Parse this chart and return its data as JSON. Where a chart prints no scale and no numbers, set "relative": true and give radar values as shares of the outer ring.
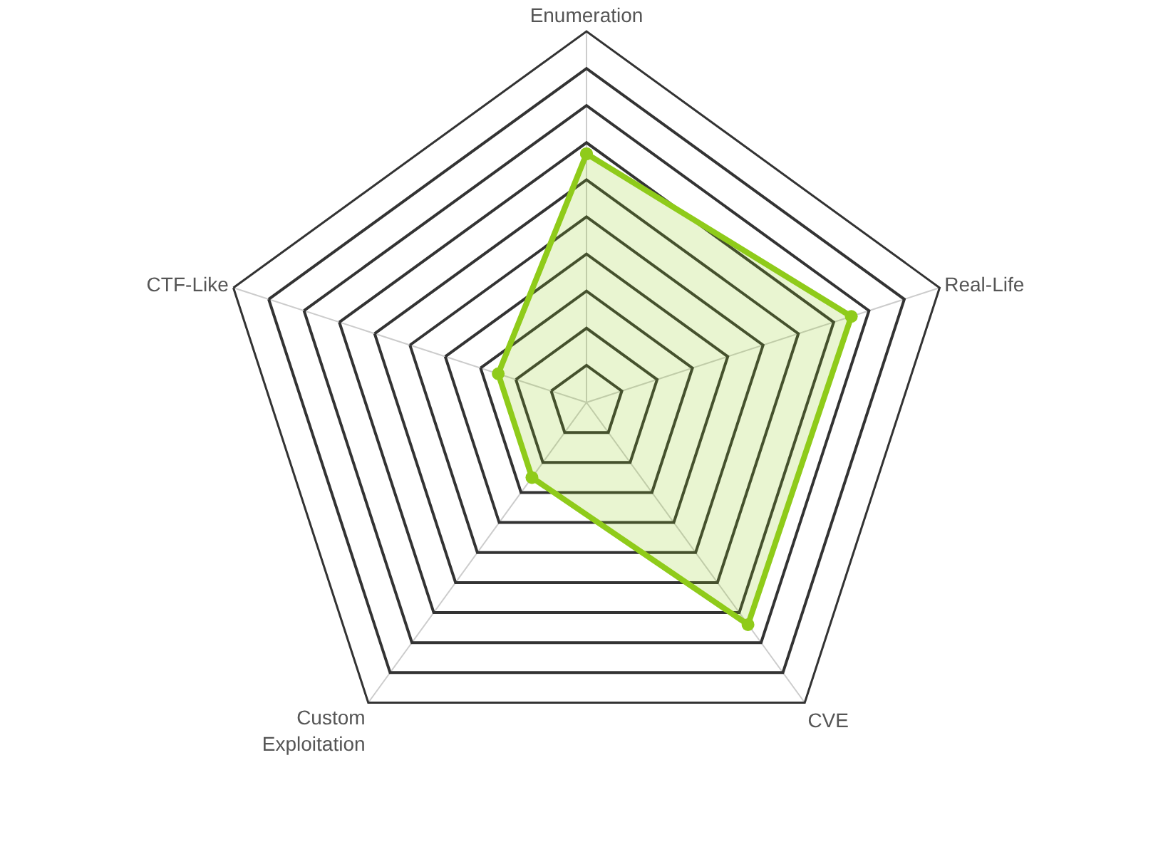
{
  "chart_data": {
    "type": "radar",
    "relative": true,
    "categories": [
      "Enumeration",
      "Real-Life",
      "CVE",
      "Custom Exploitation",
      "CTF-Like"
    ],
    "series": [
      {
        "color": "#8fcb1a",
        "values": [
          0.67,
          0.75,
          0.74,
          0.25,
          0.25
        ]
      }
    ],
    "marker": "circle",
    "grid": true
  }
}
